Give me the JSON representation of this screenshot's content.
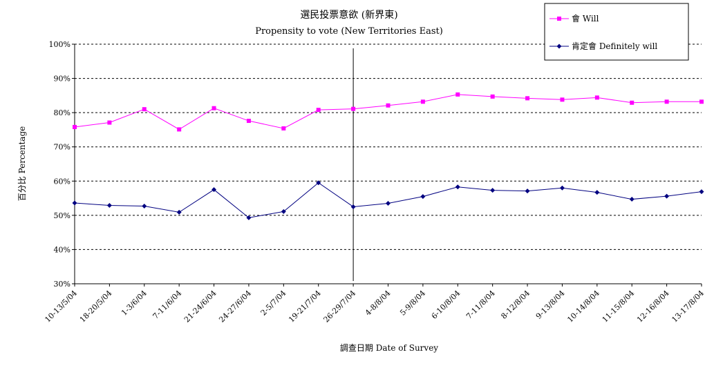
{
  "chart_data": {
    "type": "line",
    "title": "選民投票意欲 (新界東)",
    "subtitle": "Propensity to vote (New Territories East)",
    "xlabel": "調查日期 Date of Survey",
    "ylabel": "百分比 Percentage",
    "ylim": [
      30,
      100
    ],
    "yticks": [
      "30%",
      "40%",
      "50%",
      "60%",
      "70%",
      "80%",
      "90%",
      "100%"
    ],
    "grid": "horizontal-dashed",
    "legend_position": "top-right",
    "categories": [
      "10-13/5/04",
      "18-20/5/04",
      "1-3/6/04",
      "7-11/6/04",
      "21-24/6/04",
      "24-27/6/04",
      "2-5/7/04",
      "19-21/7/04",
      "26-29/7/04",
      "4-8/8/04",
      "5-9/8/04",
      "6-10/8/04",
      "7-11/8/04",
      "8-12/8/04",
      "9-13/8/04",
      "10-14/8/04",
      "11-15/8/04",
      "12-16/8/04",
      "13-17/8/04"
    ],
    "reference_line_after_index": 8,
    "series": [
      {
        "name": "會 Will",
        "color": "#ff00ff",
        "marker": "square",
        "values": [
          75.8,
          77.1,
          81.0,
          75.1,
          81.3,
          77.6,
          75.4,
          80.8,
          81.1,
          82.1,
          83.2,
          85.3,
          84.7,
          84.2,
          83.8,
          84.4,
          82.9,
          83.2,
          83.2
        ]
      },
      {
        "name": "肯定會 Definitely will",
        "color": "#000080",
        "marker": "diamond",
        "values": [
          53.6,
          52.9,
          52.7,
          50.9,
          57.5,
          49.3,
          51.1,
          59.5,
          52.5,
          53.5,
          55.5,
          58.3,
          57.3,
          57.1,
          58.0,
          56.7,
          54.7,
          55.6,
          56.9
        ]
      }
    ]
  }
}
